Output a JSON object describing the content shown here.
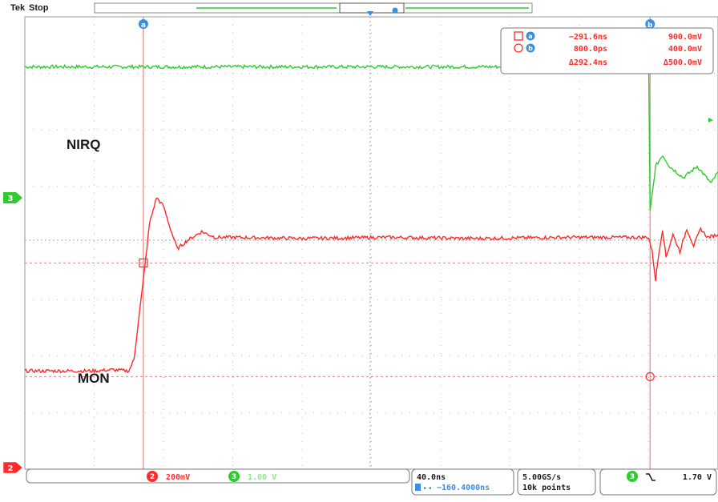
{
  "header": {
    "brand": "Tek",
    "state": "Stop"
  },
  "cursor_readout": {
    "a_time": "−291.6ns",
    "a_volt": "900.0mV",
    "b_time": "800.0ps",
    "b_volt": "400.0mV",
    "delta_time": "Δ292.4ns",
    "delta_volt": "Δ500.0mV",
    "a_label": "a",
    "b_label": "b"
  },
  "cursor_markers": {
    "a": "a",
    "b": "b"
  },
  "labels": {
    "nirq": "NIRQ",
    "mon": "MON"
  },
  "channel_markers": {
    "ch3": "3",
    "ch2": "2"
  },
  "status": {
    "ch2_num": "2",
    "ch2_scale": "200mV",
    "ch3_num": "3",
    "ch3_scale": "1.00 V",
    "timebase": "40.0ns",
    "position": "−160.4000ns",
    "sample_rate": "5.00GS/s",
    "record_length": "10k points",
    "trigger_ch": "3",
    "trigger_level": "1.70 V"
  },
  "colors": {
    "ch2": "#ff2a2a",
    "ch3": "#2ecc2e",
    "cursor": "#f08080",
    "grid": "#b8b8b8",
    "text": "#1a1a1a"
  },
  "chart_data": {
    "type": "line",
    "title": "",
    "xlabel": "",
    "ylabel": "",
    "x_units": "ns",
    "x_range": [
      -360,
      40
    ],
    "grid": true,
    "series": [
      {
        "name": "NIRQ",
        "channel": 3,
        "x": [
          -360,
          -296,
          -280,
          -200,
          -100,
          0,
          0.8,
          4,
          8,
          12,
          20,
          28,
          36,
          40
        ],
        "y_divisions": [
          3.05,
          3.05,
          3.05,
          3.05,
          3.05,
          3.05,
          0.5,
          1.3,
          1.5,
          1.3,
          1.1,
          1.3,
          1.0,
          1.2
        ]
      },
      {
        "name": "MON",
        "channel": 2,
        "x": [
          -360,
          -320,
          -310,
          -300,
          -297,
          -294,
          -291.6,
          -288,
          -284,
          -280,
          -276,
          -272,
          -266,
          -258,
          -250,
          -240,
          -200,
          -150,
          -100,
          -50,
          0,
          2,
          4,
          6,
          8,
          10,
          14,
          18,
          22,
          26,
          30,
          34,
          40
        ],
        "y_divisions": [
          -2.3,
          -2.3,
          -2.28,
          -2.3,
          -2.1,
          -1.3,
          -0.7,
          0.3,
          0.75,
          0.6,
          0.2,
          -0.15,
          0.0,
          0.15,
          0.05,
          0.05,
          0.03,
          0.05,
          0.03,
          0.05,
          0.05,
          -0.2,
          -0.7,
          -0.2,
          0.2,
          -0.3,
          0.1,
          -0.2,
          0.2,
          -0.1,
          0.2,
          0.05,
          0.1
        ]
      }
    ],
    "cursors": {
      "a": {
        "time_ns": -291.6,
        "volt_mV": 900.0
      },
      "b": {
        "time_ns": 0.8,
        "volt_mV": 400.0
      }
    }
  }
}
